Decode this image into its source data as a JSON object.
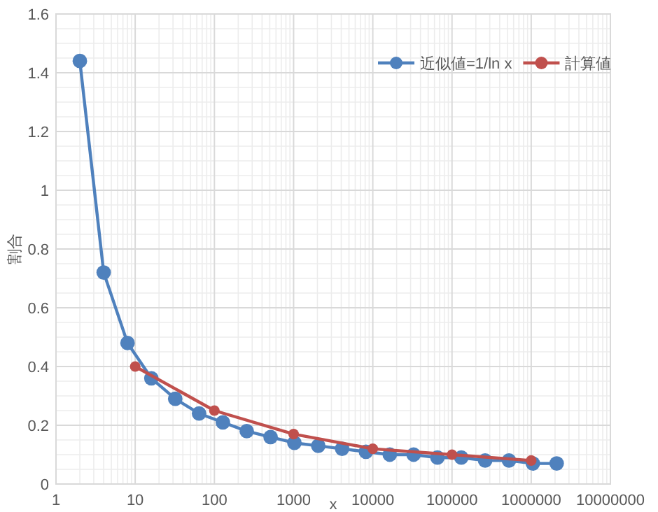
{
  "chart_data": {
    "type": "line",
    "xlabel": "x",
    "ylabel": "割合",
    "log": "x",
    "xlim": [
      1,
      10000000
    ],
    "xticks": [
      1,
      10,
      100,
      1000,
      10000,
      100000,
      1000000,
      10000000
    ],
    "ylim": [
      0,
      1.6
    ],
    "yticks": [
      0,
      0.2,
      0.4,
      0.6,
      0.8,
      1,
      1.2,
      1.4,
      1.6
    ],
    "grid": true,
    "legend": "top right",
    "marker": "circle",
    "line_style": "solid",
    "series": [
      {
        "name": "近似値=1/ln x",
        "color": "#4f81bd",
        "x": [
          2,
          4,
          8,
          16,
          32,
          64,
          128,
          256,
          512,
          1024,
          2048,
          4096,
          8192,
          16384,
          32768,
          65536,
          131072,
          262144,
          524288,
          1048576,
          2097152
        ],
        "values": [
          1.44,
          0.72,
          0.48,
          0.36,
          0.29,
          0.24,
          0.21,
          0.18,
          0.16,
          0.14,
          0.13,
          0.12,
          0.11,
          0.1,
          0.1,
          0.09,
          0.09,
          0.08,
          0.08,
          0.07,
          0.07
        ]
      },
      {
        "name": "計算値",
        "color": "#c0504d",
        "x": [
          10,
          100,
          1000,
          10000,
          100000,
          1000000
        ],
        "values": [
          0.4,
          0.25,
          0.17,
          0.12,
          0.1,
          0.08
        ]
      }
    ]
  }
}
